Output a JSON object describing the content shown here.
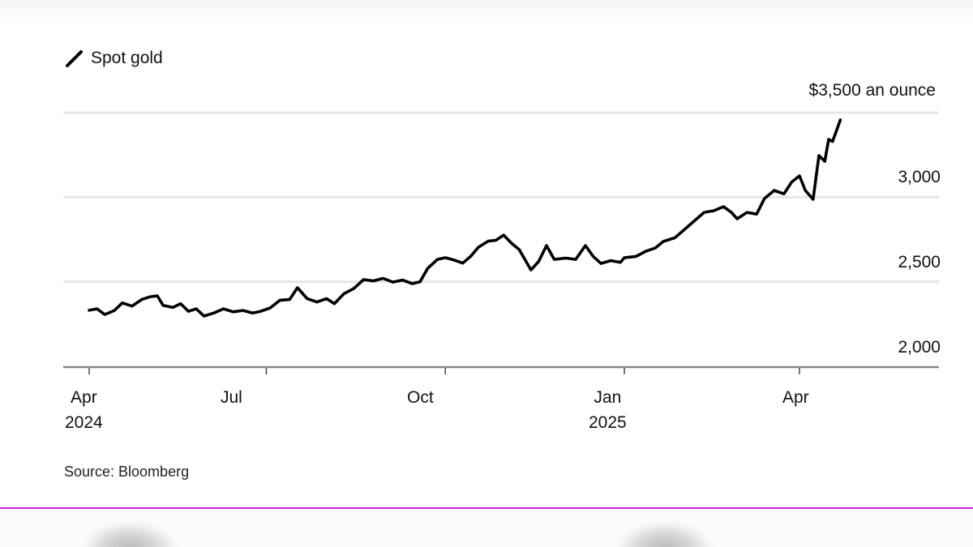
{
  "legend": {
    "label": "Spot gold",
    "icon": "diagonal-line-swatch"
  },
  "unit_label": "$3,500 an ounce",
  "y_ticks": [
    {
      "value": 3500,
      "label": ""
    },
    {
      "value": 3000,
      "label": "3,000"
    },
    {
      "value": 2500,
      "label": "2,500"
    },
    {
      "value": 2000,
      "label": "2,000"
    }
  ],
  "x_ticks": [
    {
      "date": "2024-04-01",
      "label": "Apr",
      "sublabel": "2024"
    },
    {
      "date": "2024-07-01",
      "label": "Jul",
      "sublabel": ""
    },
    {
      "date": "2024-10-01",
      "label": "Oct",
      "sublabel": ""
    },
    {
      "date": "2025-01-01",
      "label": "Jan",
      "sublabel": "2025"
    },
    {
      "date": "2025-04-01",
      "label": "Apr",
      "sublabel": ""
    }
  ],
  "source": "Source: Bloomberg",
  "colors": {
    "line": "#000000",
    "grid": "#e6e6e6",
    "axis": "#888888",
    "divider": "#d81fd8"
  },
  "chart_data": {
    "type": "line",
    "title": "",
    "legend": [
      "Spot gold"
    ],
    "xlabel": "",
    "ylabel": "$ an ounce",
    "ylim": [
      2000,
      3500
    ],
    "grid": true,
    "legend_position": "top-left",
    "series": [
      {
        "name": "Spot gold",
        "points": [
          [
            "2024-04-01",
            2331
          ],
          [
            "2024-04-05",
            2340
          ],
          [
            "2024-04-09",
            2306
          ],
          [
            "2024-04-14",
            2330
          ],
          [
            "2024-04-18",
            2375
          ],
          [
            "2024-04-23",
            2356
          ],
          [
            "2024-04-28",
            2395
          ],
          [
            "2024-05-02",
            2410
          ],
          [
            "2024-05-06",
            2417
          ],
          [
            "2024-05-09",
            2360
          ],
          [
            "2024-05-14",
            2348
          ],
          [
            "2024-05-18",
            2370
          ],
          [
            "2024-05-22",
            2325
          ],
          [
            "2024-05-26",
            2340
          ],
          [
            "2024-05-30",
            2297
          ],
          [
            "2024-06-04",
            2315
          ],
          [
            "2024-06-09",
            2340
          ],
          [
            "2024-06-14",
            2322
          ],
          [
            "2024-06-19",
            2330
          ],
          [
            "2024-06-24",
            2315
          ],
          [
            "2024-06-28",
            2325
          ],
          [
            "2024-07-03",
            2345
          ],
          [
            "2024-07-08",
            2390
          ],
          [
            "2024-07-13",
            2395
          ],
          [
            "2024-07-17",
            2465
          ],
          [
            "2024-07-22",
            2400
          ],
          [
            "2024-07-27",
            2380
          ],
          [
            "2024-08-01",
            2400
          ],
          [
            "2024-08-05",
            2370
          ],
          [
            "2024-08-10",
            2430
          ],
          [
            "2024-08-15",
            2460
          ],
          [
            "2024-08-20",
            2513
          ],
          [
            "2024-08-25",
            2505
          ],
          [
            "2024-08-30",
            2520
          ],
          [
            "2024-09-04",
            2498
          ],
          [
            "2024-09-09",
            2510
          ],
          [
            "2024-09-14",
            2489
          ],
          [
            "2024-09-18",
            2500
          ],
          [
            "2024-09-22",
            2580
          ],
          [
            "2024-09-27",
            2632
          ],
          [
            "2024-10-01",
            2642
          ],
          [
            "2024-10-05",
            2630
          ],
          [
            "2024-10-10",
            2610
          ],
          [
            "2024-10-14",
            2650
          ],
          [
            "2024-10-18",
            2704
          ],
          [
            "2024-10-23",
            2740
          ],
          [
            "2024-10-27",
            2745
          ],
          [
            "2024-10-31",
            2776
          ],
          [
            "2024-11-04",
            2728
          ],
          [
            "2024-11-08",
            2690
          ],
          [
            "2024-11-14",
            2570
          ],
          [
            "2024-11-18",
            2620
          ],
          [
            "2024-11-22",
            2714
          ],
          [
            "2024-11-26",
            2632
          ],
          [
            "2024-12-02",
            2640
          ],
          [
            "2024-12-07",
            2632
          ],
          [
            "2024-12-12",
            2714
          ],
          [
            "2024-12-16",
            2650
          ],
          [
            "2024-12-20",
            2608
          ],
          [
            "2024-12-25",
            2625
          ],
          [
            "2024-12-30",
            2615
          ],
          [
            "2025-01-01",
            2642
          ],
          [
            "2025-01-07",
            2650
          ],
          [
            "2025-01-12",
            2680
          ],
          [
            "2025-01-17",
            2700
          ],
          [
            "2025-01-21",
            2738
          ],
          [
            "2025-01-27",
            2760
          ],
          [
            "2025-02-01",
            2810
          ],
          [
            "2025-02-06",
            2860
          ],
          [
            "2025-02-11",
            2910
          ],
          [
            "2025-02-16",
            2920
          ],
          [
            "2025-02-21",
            2944
          ],
          [
            "2025-02-25",
            2910
          ],
          [
            "2025-02-28",
            2872
          ],
          [
            "2025-03-05",
            2910
          ],
          [
            "2025-03-10",
            2900
          ],
          [
            "2025-03-14",
            2992
          ],
          [
            "2025-03-19",
            3040
          ],
          [
            "2025-03-24",
            3020
          ],
          [
            "2025-03-28",
            3090
          ],
          [
            "2025-04-01",
            3126
          ],
          [
            "2025-04-04",
            3040
          ],
          [
            "2025-04-08",
            2987
          ],
          [
            "2025-04-11",
            3246
          ],
          [
            "2025-04-14",
            3212
          ],
          [
            "2025-04-16",
            3342
          ],
          [
            "2025-04-18",
            3330
          ],
          [
            "2025-04-22",
            3457
          ]
        ]
      }
    ]
  }
}
